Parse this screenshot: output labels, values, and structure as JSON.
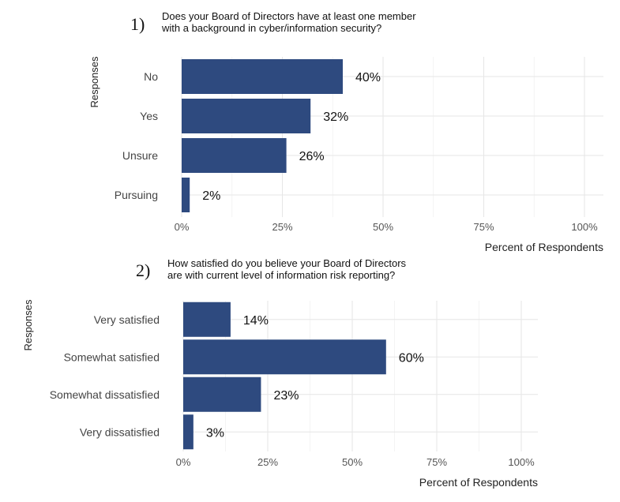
{
  "charts": [
    {
      "number": "1)",
      "question_lines": [
        "Does your Board of Directors have at least one member",
        "with a background in cyber/information security?"
      ]
    },
    {
      "number": "2)",
      "question_lines": [
        "How satisfied do you believe your Board of Directors",
        "are with current level of information risk reporting?"
      ]
    }
  ],
  "chart_data": [
    {
      "type": "bar",
      "orientation": "horizontal",
      "title": "Does your Board of Directors have at least one member with a background in cyber/information security?",
      "categories": [
        "No",
        "Yes",
        "Unsure",
        "Pursuing"
      ],
      "values": [
        40,
        32,
        26,
        2
      ],
      "value_labels": [
        "40%",
        "32%",
        "26%",
        "2%"
      ],
      "xlabel": "Percent of Respondents",
      "ylabel": "Responses",
      "xlim": [
        0,
        100
      ],
      "xticks": [
        "0%",
        "25%",
        "50%",
        "75%",
        "100%"
      ],
      "bar_color": "#2e4a7f",
      "grid": true
    },
    {
      "type": "bar",
      "orientation": "horizontal",
      "title": "How satisfied do you believe your Board of Directors are with current level of information risk reporting?",
      "categories": [
        "Very satisfied",
        "Somewhat satisfied",
        "Somewhat dissatisfied",
        "Very dissatisfied"
      ],
      "values": [
        14,
        60,
        23,
        3
      ],
      "value_labels": [
        "14%",
        "60%",
        "23%",
        "3%"
      ],
      "xlabel": "Percent of Respondents",
      "ylabel": "Responses",
      "xlim": [
        0,
        100
      ],
      "xticks": [
        "0%",
        "25%",
        "50%",
        "75%",
        "100%"
      ],
      "bar_color": "#2e4a7f",
      "grid": true
    }
  ]
}
